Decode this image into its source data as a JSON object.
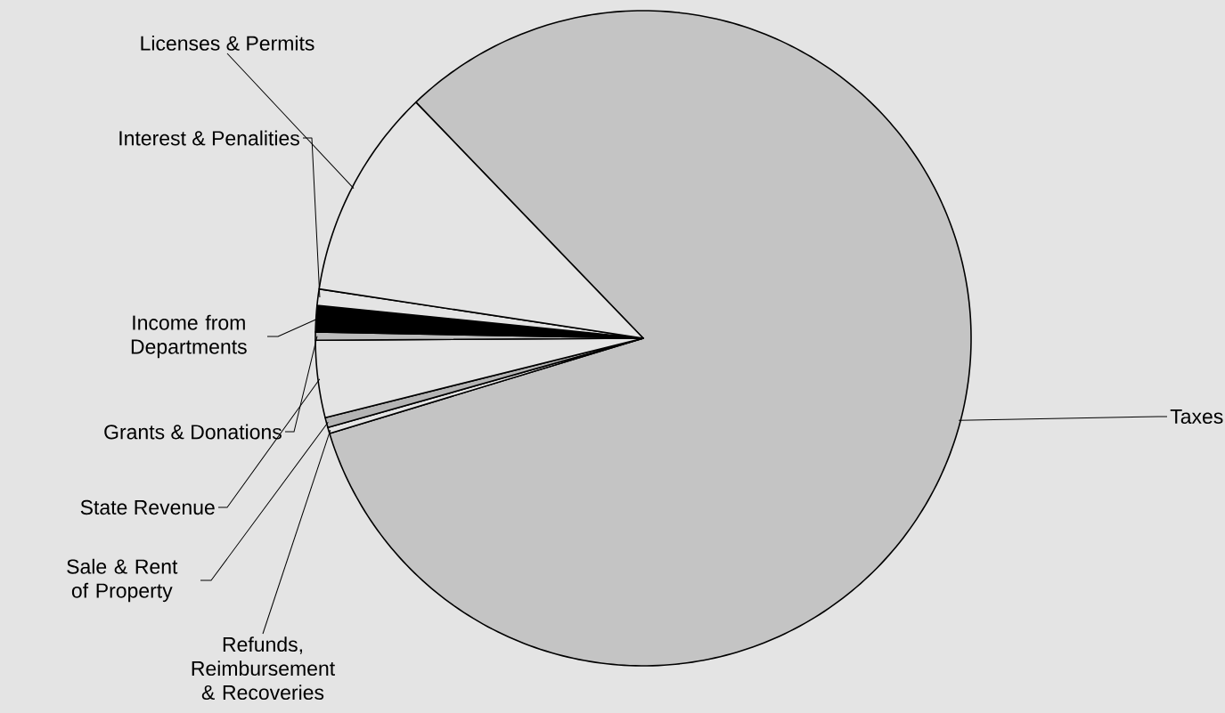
{
  "chart_data": {
    "type": "pie",
    "categories": [
      "Taxes",
      "Refunds, Reimbursement & Recoveries",
      "Sale & Rent of Property",
      "State Revenue",
      "Grants & Donations",
      "Income from Departments",
      "Interest & Penalities",
      "Licenses & Permits"
    ],
    "values": [
      82.5,
      0.3,
      0.5,
      3.8,
      0.4,
      1.3,
      0.8,
      10.4
    ],
    "colors": [
      "#c4c4c4",
      "#e4e4e4",
      "#b4b4b4",
      "#e4e4e4",
      "#bcbcbc",
      "#000000",
      "#e4e4e4",
      "#e4e4e4"
    ]
  }
}
